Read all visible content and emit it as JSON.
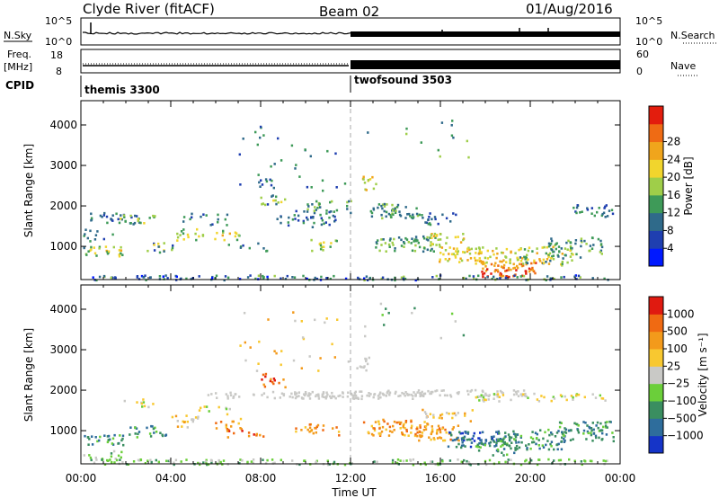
{
  "header": {
    "station": "Clyde River (fitACF)",
    "beam": "Beam 02",
    "date": "01/Aug/2016"
  },
  "top_panels": {
    "left_label_1": "N.Sky",
    "left_label_2a": "Freq.",
    "left_label_2b": "[MHz]",
    "left_label_3": "CPID",
    "right_label_1": "N.Search",
    "right_label_2": "Nave",
    "noise_ticks_left": [
      "10^5",
      "10^0"
    ],
    "noise_ticks_right": [
      "10^5",
      "10^0"
    ],
    "freq_ticks": [
      "18",
      "8"
    ],
    "nave_ticks": [
      "60",
      "0"
    ],
    "cpid_segments": [
      {
        "label": "themis 3300",
        "start_hour": 0
      },
      {
        "label": "twofsound 3503",
        "start_hour": 12
      }
    ]
  },
  "chart_data": [
    {
      "type": "heatmap",
      "name": "power",
      "ylabel": "Slant Range [km]",
      "xlabel": "Time UT",
      "x_ticks": [
        "00:00",
        "04:00",
        "08:00",
        "12:00",
        "16:00",
        "20:00",
        "00:00"
      ],
      "xlim_hours": [
        0,
        24
      ],
      "ylim": [
        180,
        4600
      ],
      "y_ticks": [
        1000,
        2000,
        3000,
        4000
      ],
      "colorbar": {
        "label": "Power [dB]",
        "ticks": [
          "4",
          "8",
          "12",
          "16",
          "20",
          "24",
          "28"
        ],
        "colors": [
          "#0019ff",
          "#1f3fb0",
          "#2f6a8a",
          "#3e9a58",
          "#9fce49",
          "#f1d52d",
          "#f0a51c",
          "#ef6b14",
          "#e31d0d"
        ]
      }
    },
    {
      "type": "heatmap",
      "name": "velocity",
      "ylabel": "Slant Range [km]",
      "xlabel": "Time UT",
      "x_ticks": [
        "00:00",
        "04:00",
        "08:00",
        "12:00",
        "16:00",
        "20:00",
        "00:00"
      ],
      "xlim_hours": [
        0,
        24
      ],
      "ylim": [
        180,
        4600
      ],
      "y_ticks": [
        1000,
        2000,
        3000,
        4000
      ],
      "colorbar": {
        "label": "Velocity [m s⁻¹]",
        "ticks": [
          "1000",
          "500",
          "100",
          "25",
          "−25",
          "−100",
          "−500",
          "−1000"
        ],
        "colors": [
          "#1534c8",
          "#2e6d9c",
          "#3a8e60",
          "#6bcf3a",
          "#c9c9c6",
          "#f8c830",
          "#f39a1b",
          "#f06a12",
          "#e01a10"
        ]
      }
    }
  ]
}
